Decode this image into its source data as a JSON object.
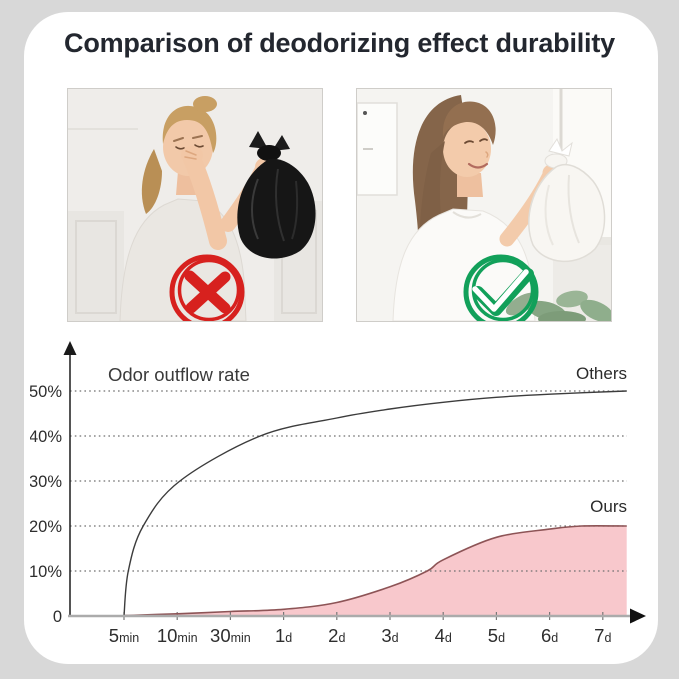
{
  "page": {
    "background_color": "#d8d8d8",
    "card_color": "#ffffff"
  },
  "title": "Comparison of deodorizing effect durability",
  "comparison_photos": {
    "left": {
      "result_icon": "x-mark-icon",
      "result_color": "#d7211e",
      "subject": "woman pinching nose holding black trash bag"
    },
    "right": {
      "result_icon": "check-mark-icon",
      "result_color": "#12a05a",
      "subject": "smiling woman holding white trash bag"
    }
  },
  "chart_data": {
    "type": "area",
    "title": "Odor outflow rate",
    "grid": "dotted-horizontal",
    "legend_position": "inline-right",
    "x_tick_labels": [
      {
        "num": "5",
        "unit": "min"
      },
      {
        "num": "10",
        "unit": "min"
      },
      {
        "num": "30",
        "unit": "min"
      },
      {
        "num": "1",
        "unit": "d"
      },
      {
        "num": "2",
        "unit": "d"
      },
      {
        "num": "3",
        "unit": "d"
      },
      {
        "num": "4",
        "unit": "d"
      },
      {
        "num": "5",
        "unit": "d"
      },
      {
        "num": "6",
        "unit": "d"
      },
      {
        "num": "7",
        "unit": "d"
      }
    ],
    "y_ticks": [
      {
        "pct": 0,
        "label": "0"
      },
      {
        "pct": 10,
        "label": "10%"
      },
      {
        "pct": 20,
        "label": "20%"
      },
      {
        "pct": 30,
        "label": "30%"
      },
      {
        "pct": 40,
        "label": "40%"
      },
      {
        "pct": 50,
        "label": "50%"
      }
    ],
    "y_axis_range_pct": [
      0,
      55
    ],
    "series": [
      {
        "name": "Others",
        "type": "line",
        "color": "#3c3c3c",
        "values_pct_at_ticks": [
          0,
          29,
          36,
          41,
          44,
          46,
          47.5,
          48.6,
          49.3,
          50
        ],
        "curve_samples": [
          [
            0,
            0
          ],
          [
            0.08,
            10
          ],
          [
            0.36,
            20
          ],
          [
            1.05,
            30
          ],
          [
            2.56,
            40
          ],
          [
            4,
            44
          ],
          [
            5,
            46
          ],
          [
            6,
            47.5
          ],
          [
            7,
            48.6
          ],
          [
            8,
            49.3
          ],
          [
            9.45,
            50
          ]
        ]
      },
      {
        "name": "Ours",
        "type": "filled-area",
        "fill_color": "#f8c8cc",
        "line_color": "#8d5456",
        "values_pct_at_ticks": [
          0,
          0.5,
          1,
          1.5,
          3,
          6.5,
          12.5,
          17.5,
          19.3,
          20
        ],
        "curve_samples": [
          [
            0,
            0.1
          ],
          [
            1,
            0.5
          ],
          [
            2,
            1
          ],
          [
            3,
            1.5
          ],
          [
            4,
            3
          ],
          [
            5,
            6.5
          ],
          [
            5.7,
            10
          ],
          [
            6,
            12.5
          ],
          [
            7,
            17.5
          ],
          [
            8,
            19.3
          ],
          [
            8.6,
            20
          ],
          [
            9.45,
            20
          ]
        ]
      }
    ]
  }
}
